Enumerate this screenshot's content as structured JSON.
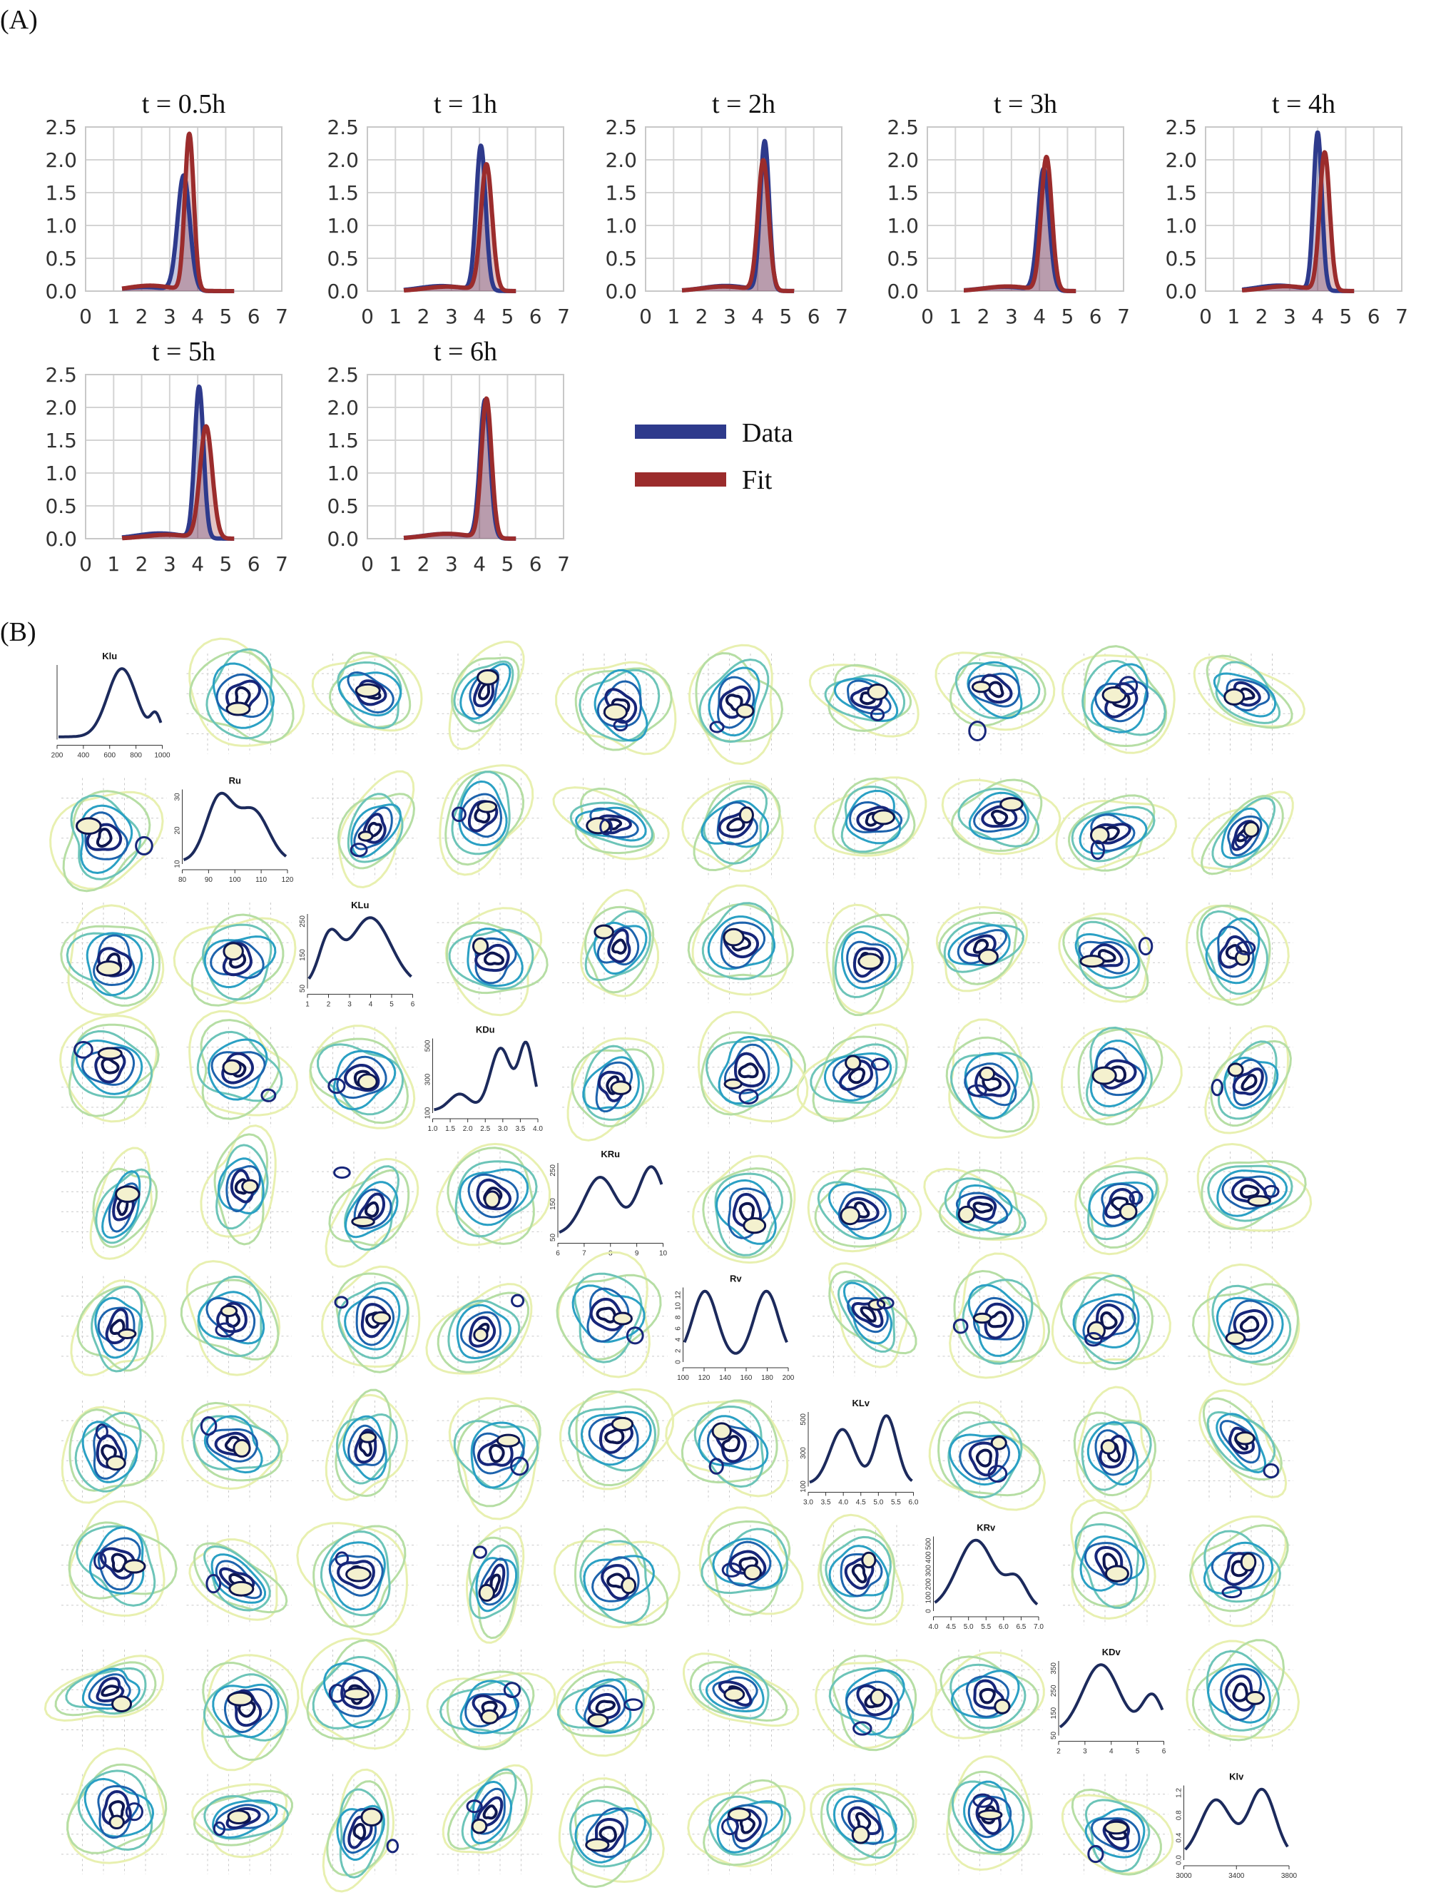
{
  "panel_labels": {
    "a": "(A)",
    "b": "(B)"
  },
  "colors": {
    "data": "#2e3a8c",
    "fit": "#9b2c2c",
    "overlap_fill": "#b79aa8",
    "marginal_line": "#1c2a5c",
    "contour_palette": [
      "#e8f0b0",
      "#b6dea4",
      "#6cc4b8",
      "#2aa0c4",
      "#1d63ad",
      "#17267a",
      "#0e1650"
    ],
    "contour_peak": "#f4f1cf"
  },
  "legend": {
    "data_label": "Data",
    "fit_label": "Fit"
  },
  "chart_data": [
    {
      "type": "area",
      "panel": "A",
      "subplots": [
        {
          "title": "t = 0.5h",
          "data_peak_x": 3.5,
          "data_peak_y": 1.75,
          "data_sd": 0.22,
          "fit_peak_x": 3.7,
          "fit_peak_y": 2.38,
          "fit_sd": 0.16
        },
        {
          "title": "t = 1h",
          "data_peak_x": 4.05,
          "data_peak_y": 2.2,
          "data_sd": 0.17,
          "fit_peak_x": 4.25,
          "fit_peak_y": 1.92,
          "fit_sd": 0.2
        },
        {
          "title": "t = 2h",
          "data_peak_x": 4.25,
          "data_peak_y": 2.27,
          "data_sd": 0.16,
          "fit_peak_x": 4.2,
          "fit_peak_y": 1.98,
          "fit_sd": 0.19
        },
        {
          "title": "t = 3h",
          "data_peak_x": 4.15,
          "data_peak_y": 1.85,
          "data_sd": 0.2,
          "fit_peak_x": 4.25,
          "fit_peak_y": 2.03,
          "fit_sd": 0.19
        },
        {
          "title": "t = 4h",
          "data_peak_x": 4.0,
          "data_peak_y": 2.4,
          "data_sd": 0.15,
          "fit_peak_x": 4.25,
          "fit_peak_y": 2.1,
          "fit_sd": 0.18
        },
        {
          "title": "t = 5h",
          "data_peak_x": 4.05,
          "data_peak_y": 2.3,
          "data_sd": 0.16,
          "fit_peak_x": 4.3,
          "fit_peak_y": 1.7,
          "fit_sd": 0.22
        },
        {
          "title": "t = 6h",
          "data_peak_x": 4.2,
          "data_peak_y": 2.1,
          "data_sd": 0.18,
          "fit_peak_x": 4.25,
          "fit_peak_y": 2.12,
          "fit_sd": 0.18
        }
      ],
      "x_ticks": [
        "0",
        "1",
        "2",
        "3",
        "4",
        "5",
        "6",
        "7"
      ],
      "y_ticks": [
        "0.0",
        "0.5",
        "1.0",
        "1.5",
        "2.0",
        "2.5"
      ],
      "xlim": [
        0,
        7
      ],
      "ylim": [
        0,
        2.5
      ],
      "grid": true,
      "legend_position": "right"
    },
    {
      "type": "line",
      "panel": "B",
      "layout": "10x10 pair matrix: marginal densities on the diagonal, contour density plots off the diagonal",
      "parameters": [
        {
          "name": "Klu",
          "xticks": [
            "200",
            "400",
            "600",
            "800",
            "1000"
          ],
          "yticks": [],
          "xlim": [
            200,
            1000
          ],
          "peaks": [
            [
              0.62,
              1.0,
              0.14
            ],
            [
              0.95,
              0.3,
              0.05
            ]
          ]
        },
        {
          "name": "Ru",
          "xticks": [
            "80",
            "90",
            "100",
            "110",
            "120"
          ],
          "yticks": [
            "10",
            "20",
            "30"
          ],
          "xlim": [
            80,
            120
          ],
          "peaks": [
            [
              0.35,
              1.0,
              0.13
            ],
            [
              0.68,
              0.8,
              0.15
            ]
          ]
        },
        {
          "name": "KLu",
          "xticks": [
            "1",
            "2",
            "3",
            "4",
            "5",
            "6"
          ],
          "yticks": [
            "50",
            "150",
            "250"
          ],
          "xlim": [
            1,
            6
          ],
          "peaks": [
            [
              0.2,
              0.68,
              0.1
            ],
            [
              0.6,
              1.0,
              0.2
            ]
          ]
        },
        {
          "name": "KDu",
          "xticks": [
            "1.0",
            "1.5",
            "2.0",
            "2.5",
            "3.0",
            "3.5",
            "4.0"
          ],
          "yticks": [
            "100",
            "300",
            "500"
          ],
          "xlim": [
            1,
            4
          ],
          "peaks": [
            [
              0.25,
              0.25,
              0.1
            ],
            [
              0.65,
              0.95,
              0.1
            ],
            [
              0.9,
              1.0,
              0.07
            ]
          ]
        },
        {
          "name": "KRu",
          "xticks": [
            "6",
            "7",
            "8",
            "9",
            "10"
          ],
          "yticks": [
            "50",
            "150",
            "250"
          ],
          "xlim": [
            6,
            10
          ],
          "peaks": [
            [
              0.4,
              0.85,
              0.16
            ],
            [
              0.9,
              1.0,
              0.13
            ]
          ]
        },
        {
          "name": "Rv",
          "xticks": [
            "100",
            "120",
            "140",
            "160",
            "180",
            "200"
          ],
          "yticks": [
            "0",
            "2",
            "4",
            "6",
            "8",
            "10",
            "12"
          ],
          "xlim": [
            100,
            200
          ],
          "peaks": [
            [
              0.2,
              1.0,
              0.12
            ],
            [
              0.8,
              1.0,
              0.12
            ]
          ]
        },
        {
          "name": "KLv",
          "xticks": [
            "3.0",
            "3.5",
            "4.0",
            "4.5",
            "5.0",
            "5.5",
            "6.0"
          ],
          "yticks": [
            "100",
            "300",
            "500"
          ],
          "xlim": [
            3,
            6
          ],
          "peaks": [
            [
              0.32,
              0.8,
              0.12
            ],
            [
              0.75,
              1.0,
              0.1
            ]
          ]
        },
        {
          "name": "KRv",
          "xticks": [
            "4.0",
            "4.5",
            "5.0",
            "5.5",
            "6.0",
            "6.5",
            "7.0"
          ],
          "yticks": [
            "0",
            "100",
            "200",
            "300",
            "400",
            "500"
          ],
          "xlim": [
            4,
            7
          ],
          "peaks": [
            [
              0.4,
              1.0,
              0.18
            ],
            [
              0.8,
              0.4,
              0.1
            ]
          ]
        },
        {
          "name": "KDv",
          "xticks": [
            "2",
            "3",
            "4",
            "5",
            "6"
          ],
          "yticks": [
            "50",
            "150",
            "250",
            "350"
          ],
          "xlim": [
            2,
            6
          ],
          "peaks": [
            [
              0.4,
              1.0,
              0.18
            ],
            [
              0.9,
              0.55,
              0.1
            ]
          ]
        },
        {
          "name": "Klv",
          "xticks": [
            "3000",
            "3400",
            "3800"
          ],
          "yticks": [
            "0.0",
            "0.4",
            "0.8",
            "1.2"
          ],
          "xlim": [
            2900,
            4000
          ],
          "peaks": [
            [
              0.3,
              0.85,
              0.15
            ],
            [
              0.75,
              1.0,
              0.13
            ]
          ]
        }
      ]
    }
  ]
}
